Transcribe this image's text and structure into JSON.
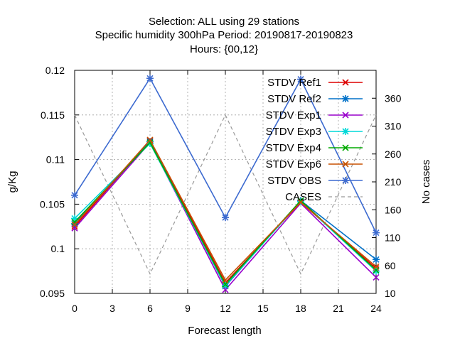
{
  "chart_data": {
    "type": "line",
    "title_lines": [
      "Selection: ALL using    29 stations",
      "Specific humidity 300hPa   Period: 20190817-20190823",
      "Hours: {00,12}"
    ],
    "xlabel": "Forecast length",
    "ylabel": "g/Kg",
    "y2label": "No cases",
    "xlim": [
      0,
      24
    ],
    "ylim": [
      0.095,
      0.12
    ],
    "y2lim": [
      10,
      410
    ],
    "x_ticks": [
      0,
      3,
      6,
      9,
      12,
      15,
      18,
      21,
      24
    ],
    "y_ticks": [
      "0.095",
      "0.1",
      "0.105",
      "0.11",
      "0.115",
      "0.12"
    ],
    "y2_ticks": [
      10,
      60,
      110,
      160,
      210,
      260,
      310,
      360
    ],
    "grid": true,
    "legend_position": "top-right",
    "x": [
      0,
      6,
      12,
      18,
      24
    ],
    "series": [
      {
        "name": "STDV Ref1",
        "color": "#dd0000",
        "marker": "x",
        "values": [
          0.1025,
          0.1121,
          0.0962,
          0.1052,
          0.0978
        ]
      },
      {
        "name": "STDV Ref2",
        "color": "#0070c8",
        "marker": "star",
        "values": [
          0.1028,
          0.112,
          0.0958,
          0.1054,
          0.0988
        ]
      },
      {
        "name": "STDV Exp1",
        "color": "#9900cc",
        "marker": "x",
        "values": [
          0.1023,
          0.1119,
          0.0954,
          0.1051,
          0.0968
        ]
      },
      {
        "name": "STDV Exp3",
        "color": "#00d8d8",
        "marker": "star",
        "values": [
          0.1034,
          0.1118,
          0.0959,
          0.1053,
          0.0975
        ]
      },
      {
        "name": "STDV Exp4",
        "color": "#00aa00",
        "marker": "x",
        "values": [
          0.103,
          0.1119,
          0.096,
          0.1054,
          0.0976
        ]
      },
      {
        "name": "STDV Exp6",
        "color": "#c85000",
        "marker": "x",
        "values": [
          0.1027,
          0.1122,
          0.0965,
          0.1052,
          0.098
        ]
      },
      {
        "name": "STDV OBS",
        "color": "#3c6ad0",
        "marker": "star",
        "values": [
          0.106,
          0.1191,
          0.1035,
          0.119,
          0.1018
        ]
      }
    ],
    "cases": {
      "name": "CASES",
      "color": "#999999",
      "axis": "y2",
      "values": [
        330,
        45,
        330,
        45,
        330
      ]
    }
  }
}
